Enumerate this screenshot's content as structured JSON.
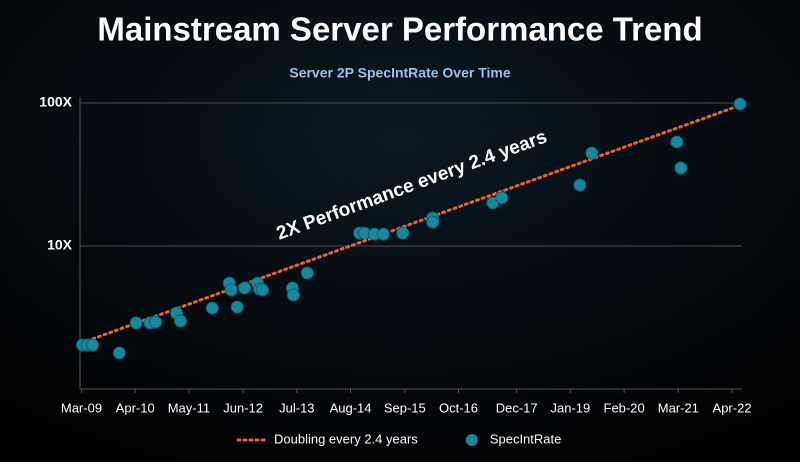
{
  "chart_data": {
    "type": "scatter",
    "title": "Mainstream Server Performance Trend",
    "subtitle": "Server 2P SpecIntRate Over Time",
    "annotation": "2X Performance every 2.4 years",
    "log_scale_y": true,
    "grid": true,
    "legend": "bottom",
    "xlim": [
      2009.1,
      2022.45
    ],
    "xticks": [
      {
        "value": 2009.17,
        "label": "Mar-09"
      },
      {
        "value": 2010.25,
        "label": "Apr-10"
      },
      {
        "value": 2011.33,
        "label": "May-11"
      },
      {
        "value": 2012.42,
        "label": "Jun-12"
      },
      {
        "value": 2013.5,
        "label": "Jul-13"
      },
      {
        "value": 2014.58,
        "label": "Aug-14"
      },
      {
        "value": 2015.67,
        "label": "Sep-15"
      },
      {
        "value": 2016.75,
        "label": "Oct-16"
      },
      {
        "value": 2017.92,
        "label": "Dec-17"
      },
      {
        "value": 2019.0,
        "label": "Jan-19"
      },
      {
        "value": 2020.08,
        "label": "Feb-20"
      },
      {
        "value": 2021.17,
        "label": "Mar-21"
      },
      {
        "value": 2022.25,
        "label": "Apr-22"
      }
    ],
    "ylim": [
      1,
      100
    ],
    "yticks": [
      {
        "value": 10,
        "label": "10X"
      },
      {
        "value": 100,
        "label": "100X"
      }
    ],
    "series": [
      {
        "name": "Doubling every 2.4 years",
        "mode": "line",
        "color": "#e8642c",
        "x": [
          2009.17,
          2022.25
        ],
        "values": [
          2.1,
          92
        ]
      },
      {
        "name": "SpecIntRate",
        "mode": "markers",
        "color": "#1689a0",
        "x": [
          2009.19,
          2009.29,
          2009.39,
          2009.93,
          2010.27,
          2010.55,
          2010.66,
          2011.08,
          2011.16,
          2011.8,
          2012.14,
          2012.18,
          2012.3,
          2012.45,
          2012.71,
          2012.75,
          2012.81,
          2013.41,
          2013.43,
          2013.71,
          2014.76,
          2014.86,
          2015.06,
          2015.24,
          2015.63,
          2016.23,
          2016.23,
          2017.44,
          2017.62,
          2019.19,
          2019.43,
          2021.14,
          2021.22,
          2022.41
        ],
        "values": [
          2.03,
          2.03,
          2.03,
          1.79,
          2.9,
          2.9,
          2.94,
          3.4,
          2.99,
          3.68,
          5.5,
          4.93,
          3.74,
          5.09,
          5.5,
          5.0,
          4.93,
          5.09,
          4.54,
          6.48,
          12.3,
          12.3,
          12.1,
          12.1,
          12.3,
          15.7,
          14.7,
          20.0,
          21.7,
          26.7,
          44.7,
          53.4,
          35.1,
          98.4
        ]
      }
    ]
  }
}
